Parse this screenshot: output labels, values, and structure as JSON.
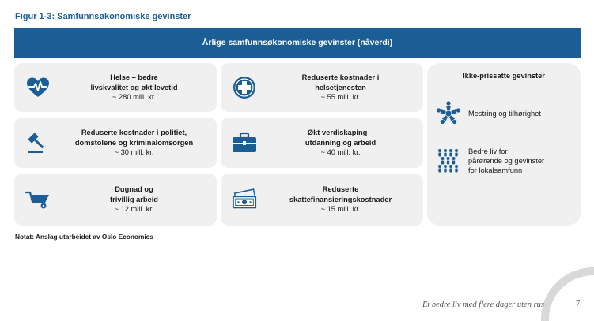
{
  "figure": {
    "title": "Figur 1-3: Samfunnsøkonomiske gevinster"
  },
  "banner": {
    "label": "Årlige samfunnsøkonomiske gevinster (nåverdi)"
  },
  "cards": [
    {
      "title_1": "Helse – bedre",
      "title_2": "livskvalitet og økt levetid",
      "value": "~ 280 mill. kr.",
      "icon": "heartbeat-icon"
    },
    {
      "title_1": "Reduserte kostnader i",
      "title_2": "helsetjenesten",
      "value": "~ 55 mill. kr.",
      "icon": "medical-cross-icon"
    },
    {
      "title_1": "Reduserte kostnader i politiet,",
      "title_2": "domstolene og kriminalomsorgen",
      "value": "~ 30 mill. kr.",
      "icon": "gavel-icon"
    },
    {
      "title_1": "Økt verdiskaping –",
      "title_2": "utdanning og arbeid",
      "value": "~ 40 mill. kr.",
      "icon": "briefcase-icon"
    },
    {
      "title_1": "Dugnad og",
      "title_2": "frivillig arbeid",
      "value": "~ 12 mill. kr.",
      "icon": "wheelbarrow-icon"
    },
    {
      "title_1": "Reduserte",
      "title_2": "skattefinansieringskostnader",
      "value": "~ 15 mill. kr.",
      "icon": "money-bills-icon"
    }
  ],
  "side_panel": {
    "title": "Ikke-prissatte gevinster",
    "items": [
      {
        "line_1": "Mestring og tilhørighet",
        "line_2": "",
        "line_3": "",
        "icon": "team-circle-icon"
      },
      {
        "line_1": "Bedre liv for",
        "line_2": "pårørende og gevinster",
        "line_3": "for lokalsamfunn",
        "icon": "crowd-icon"
      }
    ]
  },
  "note": "Notat: Anslag utarbeidet av Oslo Economics",
  "footer": {
    "tagline": "Et bedre liv med flere dager uten rus",
    "page_number": "7"
  },
  "colors": {
    "brand_blue": "#1b5e96",
    "card_bg": "#f0f0f0",
    "footer_arc": "#d9d9d9"
  }
}
